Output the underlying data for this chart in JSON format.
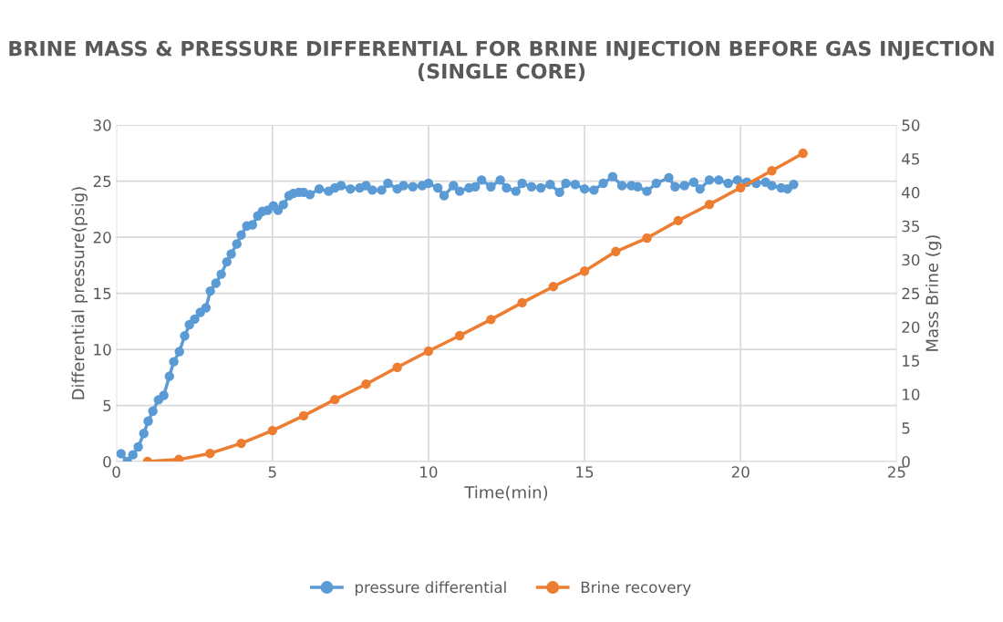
{
  "chart_data": {
    "type": "line",
    "title": "BRINE MASS & PRESSURE DIFFERENTIAL FOR BRINE INJECTION BEFORE GAS INJECTION (SINGLE CORE)",
    "xlabel": "Time(min)",
    "ylabel": "Differential pressure(psig)",
    "y2label": "Mass Brine (g)",
    "xlim": [
      0,
      25
    ],
    "xticks": [
      0,
      5,
      10,
      15,
      20,
      25
    ],
    "ylim": [
      0,
      30
    ],
    "yticks": [
      0,
      5,
      10,
      15,
      20,
      25,
      30
    ],
    "y2lim": [
      0,
      50
    ],
    "y2ticks": [
      0,
      5,
      10,
      15,
      20,
      25,
      30,
      35,
      40,
      45,
      50
    ],
    "grid": true,
    "legend": "bottom",
    "marker": "circle",
    "line_style": "solid",
    "series": [
      {
        "name": "pressure differential",
        "color": "#5b9bd5",
        "x": [
          0.15,
          0.35,
          0.53,
          0.7,
          0.88,
          1.02,
          1.17,
          1.35,
          1.52,
          1.7,
          1.84,
          2.02,
          2.19,
          2.34,
          2.51,
          2.69,
          2.87,
          3.01,
          3.19,
          3.36,
          3.54,
          3.68,
          3.86,
          4.0,
          4.18,
          4.36,
          4.53,
          4.68,
          4.85,
          5.03,
          5.18,
          5.35,
          5.53,
          5.67,
          5.85,
          6.0,
          6.2,
          6.5,
          6.8,
          7.0,
          7.2,
          7.5,
          7.8,
          8.0,
          8.2,
          8.5,
          8.7,
          9.0,
          9.2,
          9.5,
          9.8,
          10.0,
          10.3,
          10.5,
          10.8,
          11.0,
          11.3,
          11.5,
          11.7,
          12.0,
          12.3,
          12.5,
          12.8,
          13.0,
          13.3,
          13.6,
          13.9,
          14.2,
          14.4,
          14.7,
          15.0,
          15.3,
          15.6,
          15.9,
          16.2,
          16.5,
          16.7,
          17.0,
          17.3,
          17.7,
          17.9,
          18.2,
          18.5,
          18.7,
          19.0,
          19.3,
          19.6,
          19.9,
          20.2,
          20.5,
          20.8,
          21.0,
          21.3,
          21.5,
          21.7
        ],
        "values": [
          0.7,
          0,
          0.6,
          1.3,
          2.5,
          3.6,
          4.5,
          5.5,
          5.9,
          7.6,
          8.9,
          9.8,
          11.2,
          12.2,
          12.7,
          13.3,
          13.7,
          15.2,
          15.9,
          16.7,
          17.8,
          18.5,
          19.4,
          20.2,
          21,
          21.1,
          21.9,
          22.3,
          22.4,
          22.8,
          22.4,
          22.9,
          23.7,
          23.9,
          24.0,
          24.0,
          23.8,
          24.3,
          24.1,
          24.4,
          24.6,
          24.3,
          24.4,
          24.6,
          24.2,
          24.2,
          24.8,
          24.3,
          24.6,
          24.5,
          24.6,
          24.8,
          24.4,
          23.7,
          24.6,
          24.1,
          24.4,
          24.5,
          25.1,
          24.5,
          25.1,
          24.4,
          24.1,
          24.8,
          24.5,
          24.4,
          24.7,
          24.0,
          24.8,
          24.7,
          24.3,
          24.2,
          24.8,
          25.4,
          24.6,
          24.6,
          24.5,
          24.1,
          24.8,
          25.3,
          24.5,
          24.6,
          24.9,
          24.3,
          25.1,
          25.1,
          24.8,
          25.1,
          24.9,
          24.8,
          24.9,
          24.6,
          24.4,
          24.3,
          24.7
        ]
      },
      {
        "name": "Brine recovery",
        "color": "#ed7d31",
        "axis": "y2",
        "x": [
          1,
          2,
          3,
          4,
          5,
          6,
          7,
          8,
          9,
          10,
          11,
          12,
          13,
          14,
          15,
          16,
          17,
          18,
          19,
          20,
          21,
          22
        ],
        "values": [
          0,
          0.3,
          1.2,
          2.7,
          4.6,
          6.8,
          9.2,
          11.5,
          14,
          16.4,
          18.7,
          21.1,
          23.6,
          26,
          28.3,
          31.2,
          33.2,
          35.8,
          38.2,
          40.7,
          43.2,
          45.8
        ]
      }
    ]
  }
}
